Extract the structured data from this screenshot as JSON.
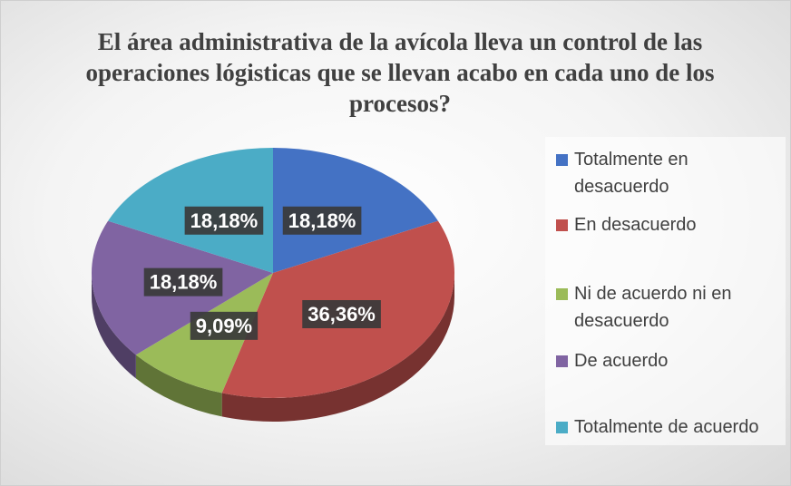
{
  "chart_data": {
    "type": "pie",
    "title": "El área administrativa de la avícola lleva un control de las operaciones lógisticas que se llevan acabo en cada uno de los procesos?",
    "categories": [
      "Totalmente en desacuerdo",
      "En desacuerdo",
      "Ni de acuerdo ni en desacuerdo",
      "De acuerdo",
      "Totalmente de acuerdo"
    ],
    "values": [
      18.18,
      36.36,
      9.09,
      18.18,
      18.18
    ],
    "value_labels": [
      "18,18%",
      "36,36%",
      "9,09%",
      "18,18%",
      "18,18%"
    ],
    "colors": [
      "#4472c4",
      "#c0504d",
      "#9bbb59",
      "#8064a2",
      "#4bacc6"
    ],
    "legend": "right"
  }
}
